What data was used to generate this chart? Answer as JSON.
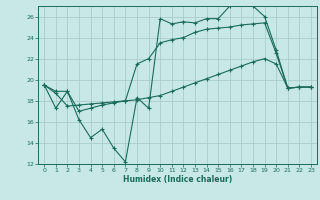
{
  "xlabel": "Humidex (Indice chaleur)",
  "background_color": "#c8e8e8",
  "grid_color": "#b0d0d0",
  "line_color": "#1a6b5a",
  "xlim": [
    -0.5,
    23.5
  ],
  "ylim": [
    12,
    27
  ],
  "xticks": [
    0,
    1,
    2,
    3,
    4,
    5,
    6,
    7,
    8,
    9,
    10,
    11,
    12,
    13,
    14,
    15,
    16,
    17,
    18,
    19,
    20,
    21,
    22,
    23
  ],
  "yticks": [
    12,
    14,
    16,
    18,
    20,
    22,
    24,
    26
  ],
  "line1_x": [
    0,
    1,
    2,
    3,
    4,
    5,
    6,
    7,
    8,
    9,
    10,
    11,
    12,
    13,
    14,
    15,
    16,
    17,
    18,
    19,
    20,
    21,
    22,
    23
  ],
  "line1_y": [
    19.5,
    17.3,
    18.9,
    16.2,
    14.5,
    15.3,
    13.5,
    12.2,
    18.3,
    17.3,
    25.8,
    25.3,
    25.5,
    25.4,
    25.8,
    25.8,
    27.0,
    27.2,
    27.0,
    26.0,
    22.8,
    19.2,
    19.3,
    19.3
  ],
  "line2_x": [
    0,
    1,
    2,
    3,
    4,
    5,
    6,
    7,
    8,
    9,
    10,
    11,
    12,
    13,
    14,
    15,
    16,
    17,
    18,
    19,
    20,
    21,
    22,
    23
  ],
  "line2_y": [
    19.5,
    18.9,
    18.9,
    17.0,
    17.3,
    17.6,
    17.8,
    18.0,
    21.5,
    22.0,
    23.5,
    23.8,
    24.0,
    24.5,
    24.8,
    24.9,
    25.0,
    25.2,
    25.3,
    25.4,
    22.5,
    19.2,
    19.3,
    19.3
  ],
  "line3_x": [
    0,
    1,
    2,
    3,
    4,
    5,
    6,
    7,
    8,
    9,
    10,
    11,
    12,
    13,
    14,
    15,
    16,
    17,
    18,
    19,
    20,
    21,
    22,
    23
  ],
  "line3_y": [
    19.5,
    18.7,
    17.5,
    17.6,
    17.7,
    17.8,
    17.9,
    18.0,
    18.1,
    18.3,
    18.5,
    18.9,
    19.3,
    19.7,
    20.1,
    20.5,
    20.9,
    21.3,
    21.7,
    22.0,
    21.5,
    19.2,
    19.3,
    19.3
  ]
}
